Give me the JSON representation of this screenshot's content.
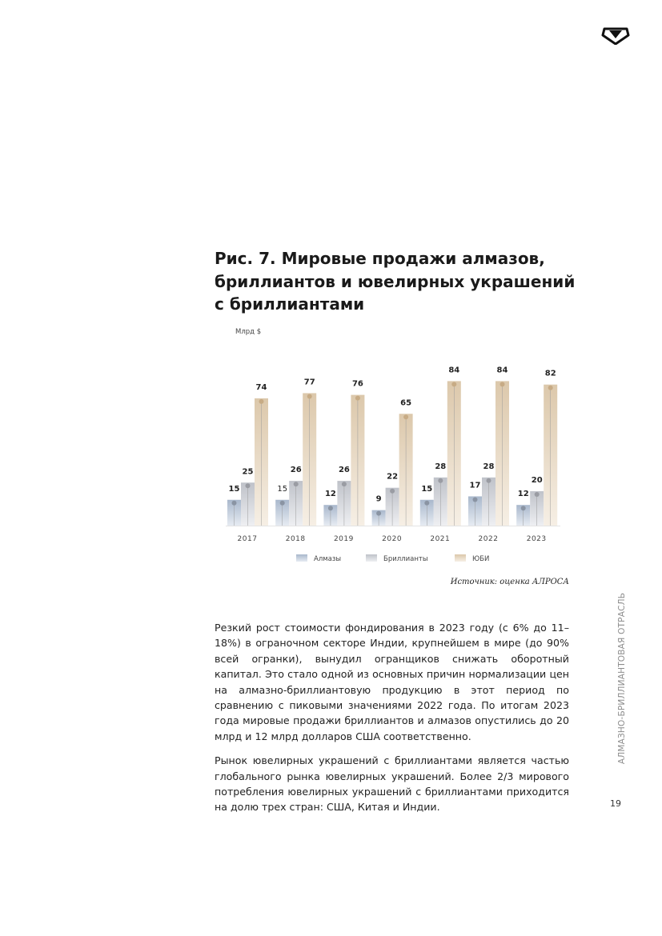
{
  "header": {
    "logo_icon": "alrosa-diamond-logo-icon"
  },
  "figure": {
    "title_lines": [
      "Рис. 7. Мировые продажи алмазов,",
      "бриллиантов и ювелирных украшений",
      "с бриллиантами"
    ],
    "source": "Источник: оценка АЛРОСА"
  },
  "chart_data": {
    "type": "bar",
    "title": "Рис. 7. Мировые продажи алмазов, бриллиантов и ювелирных украшений с бриллиантами",
    "ylabel": "Млрд $",
    "xlabel": "",
    "categories": [
      "2017",
      "2018",
      "2019",
      "2020",
      "2021",
      "2022",
      "2023"
    ],
    "series": [
      {
        "name": "Алмазы",
        "values": [
          15,
          15,
          12,
          9,
          15,
          17,
          12
        ],
        "color": "#b8c4d4"
      },
      {
        "name": "Бриллианты",
        "values": [
          25,
          26,
          26,
          22,
          28,
          28,
          20
        ],
        "color": "#c9cbd1"
      },
      {
        "name": "ЮБИ",
        "values": [
          74,
          77,
          76,
          65,
          84,
          84,
          82
        ],
        "color": "#e2d3be"
      }
    ],
    "ylim": [
      0,
      90
    ],
    "grid": false,
    "legend_position": "bottom"
  },
  "body": {
    "paragraphs": [
      "Резкий рост стоимости фондирования в 2023 году (с 6% до 11–18%) в ограночном секторе Индии, крупнейшем в мире (до 90% всей огранки), вынудил огранщиков снижать оборотный капитал. Это стало одной из основных причин нормализации цен на алмазно-бриллиантовую продукцию в этот период по сравнению с пиковыми значениями 2022 года. По итогам 2023 года мировые продажи бриллиантов и алмазов опустились до 20 млрд и 12 млрд долларов США соответственно.",
      "Рынок ювелирных украшений с бриллиантами является частью глобального рынка ювелирных украшений. Более 2/3 мирового потребления ювелирных украшений с бриллиантами приходится на долю трех стран: США, Китая и Индии."
    ]
  },
  "sidebar": {
    "section_label": "АЛМАЗНО-БРИЛЛИАНТОВАЯ ОТРАСЛЬ"
  },
  "footer": {
    "page_number": "19"
  }
}
